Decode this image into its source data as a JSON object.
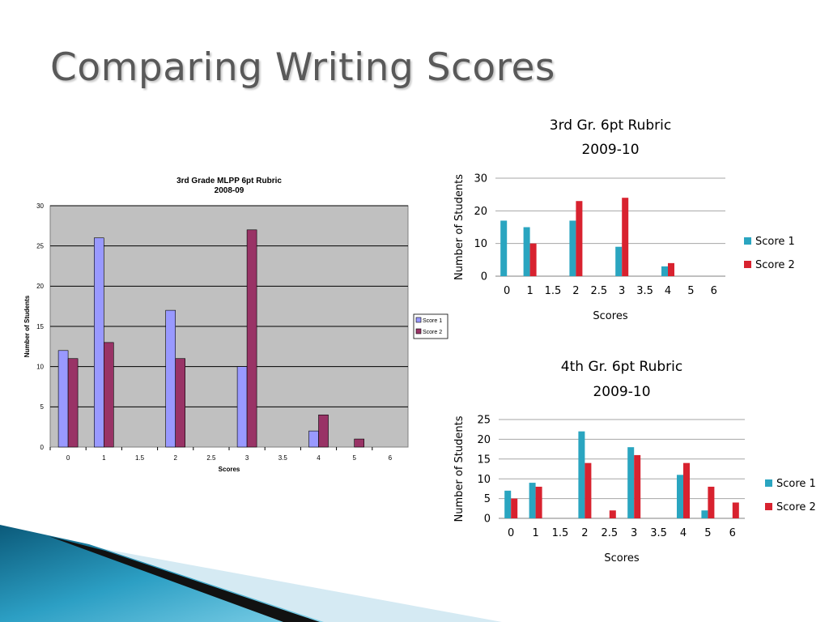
{
  "slide": {
    "title": "Comparing Writing Scores"
  },
  "colors": {
    "c1_score1": "#9999ff",
    "c1_score2": "#993366",
    "c1_plot_bg": "#c0c0c0",
    "score1": "#2aa5c0",
    "score2": "#d8222f"
  },
  "chart_data": [
    {
      "type": "bar",
      "title": "3rd Grade MLPP 6pt Rubric",
      "subtitle": "2008-09",
      "xlabel": "Scores",
      "ylabel": "Number of Students",
      "categories": [
        "0",
        "1",
        "1.5",
        "2",
        "2.5",
        "3",
        "3.5",
        "4",
        "5",
        "6"
      ],
      "series": [
        {
          "name": "Score 1",
          "values": [
            12,
            26,
            0,
            17,
            0,
            10,
            0,
            2,
            0,
            0
          ]
        },
        {
          "name": "Score 2",
          "values": [
            11,
            13,
            0,
            11,
            0,
            27,
            0,
            4,
            1,
            0
          ]
        }
      ],
      "ylim": [
        0,
        30
      ],
      "yticks": [
        0,
        5,
        10,
        15,
        20,
        25,
        30
      ],
      "grid": true,
      "legend": "right"
    },
    {
      "type": "bar",
      "title": "3rd Gr. 6pt Rubric",
      "subtitle": "2009-10",
      "xlabel": "Scores",
      "ylabel": "Number of Students",
      "categories": [
        "0",
        "1",
        "1.5",
        "2",
        "2.5",
        "3",
        "3.5",
        "4",
        "5",
        "6"
      ],
      "series": [
        {
          "name": "Score 1",
          "values": [
            17,
            15,
            0,
            17,
            0,
            9,
            0,
            3,
            0,
            0
          ]
        },
        {
          "name": "Score 2",
          "values": [
            0,
            10,
            0,
            23,
            0,
            24,
            0,
            4,
            0,
            0
          ]
        }
      ],
      "ylim": [
        0,
        30
      ],
      "yticks": [
        0,
        10,
        20,
        30
      ],
      "grid": true,
      "legend": "right"
    },
    {
      "type": "bar",
      "title": "4th Gr. 6pt Rubric",
      "subtitle": "2009-10",
      "xlabel": "Scores",
      "ylabel": "Number of Students",
      "categories": [
        "0",
        "1",
        "1.5",
        "2",
        "2.5",
        "3",
        "3.5",
        "4",
        "5",
        "6"
      ],
      "series": [
        {
          "name": "Score 1",
          "values": [
            7,
            9,
            0,
            22,
            0,
            18,
            0,
            11,
            2,
            0
          ]
        },
        {
          "name": "Score 2",
          "values": [
            5,
            8,
            0,
            14,
            2,
            16,
            0,
            14,
            8,
            4
          ]
        }
      ],
      "ylim": [
        0,
        25
      ],
      "yticks": [
        0,
        5,
        10,
        15,
        20,
        25
      ],
      "grid": true,
      "legend": "right"
    }
  ]
}
